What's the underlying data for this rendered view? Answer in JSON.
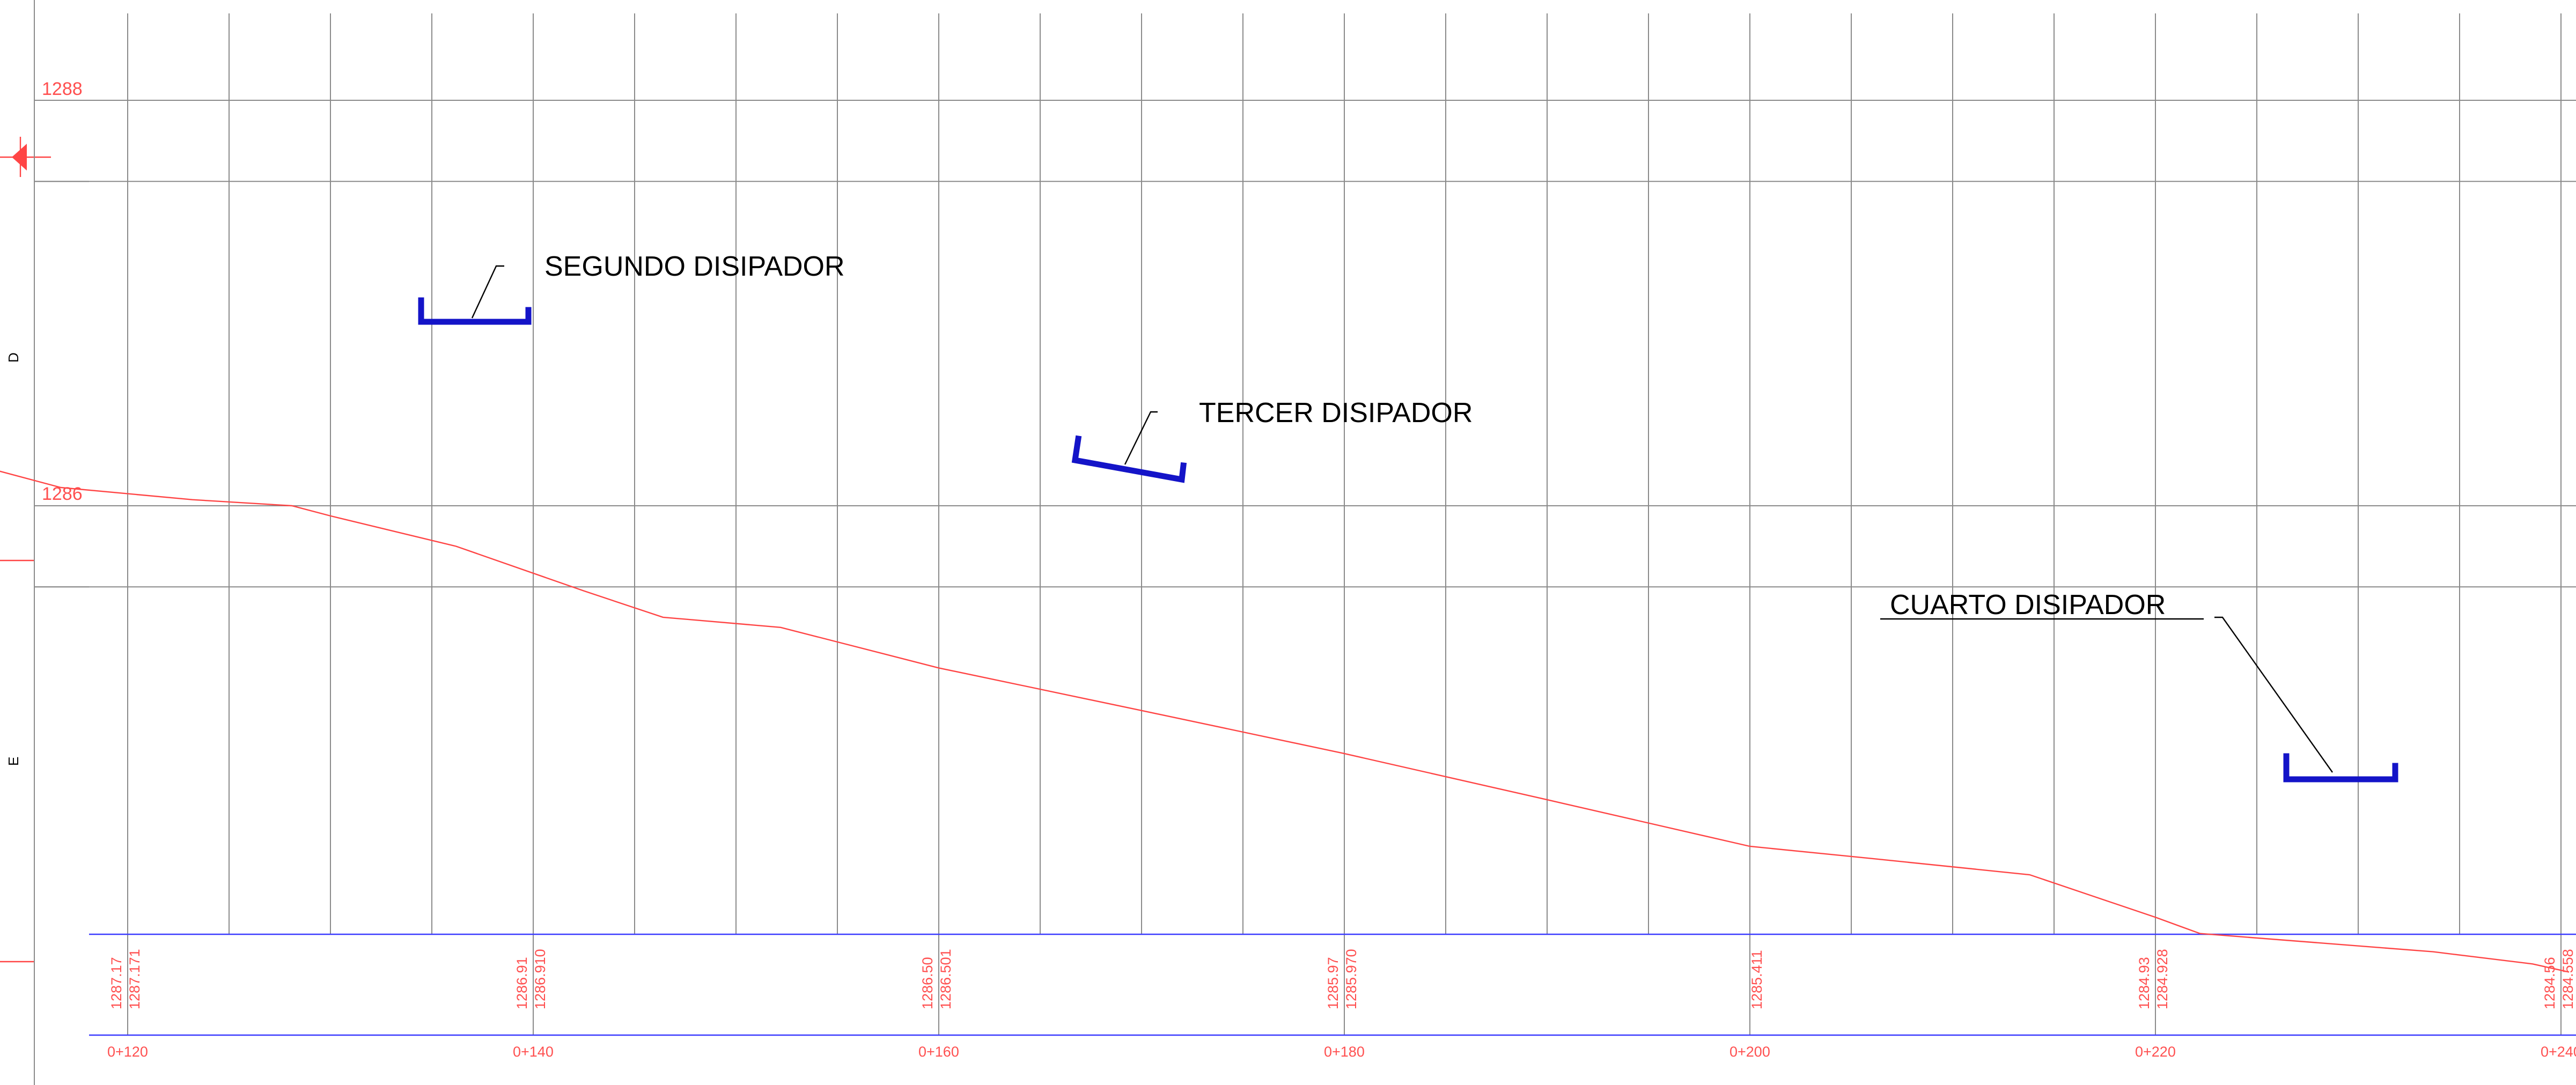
{
  "drawing": {
    "colors": {
      "grid": "#8a8a8a",
      "ground": "#ff4545",
      "dissipator": "#1414c8",
      "band": "#3c3cff",
      "annotation": "#ff5050",
      "label": "#000000"
    },
    "elevation_labels": [
      "1288",
      "1286"
    ],
    "side_letters": [
      "D",
      "E"
    ],
    "dissipators": [
      {
        "label": "SEGUNDO DISIPADOR"
      },
      {
        "label": "TERCER DISIPADOR"
      },
      {
        "label": "CUARTO DISIPADOR"
      }
    ],
    "stations": [
      {
        "station": "0+120",
        "elev_a": "1287.17",
        "elev_b": "1287.171"
      },
      {
        "station": "0+140",
        "elev_a": "1286.91",
        "elev_b": "1286.910"
      },
      {
        "station": "0+160",
        "elev_a": "1286.50",
        "elev_b": "1286.501"
      },
      {
        "station": "0+180",
        "elev_a": "1285.97",
        "elev_b": "1285.970"
      },
      {
        "station": "0+200",
        "elev_a": "",
        "elev_b": "1285.411"
      },
      {
        "station": "0+220",
        "elev_a": "1284.93",
        "elev_b": "1284.928"
      },
      {
        "station": "0+240",
        "elev_a": "1284.56",
        "elev_b": "1284.558"
      }
    ],
    "ground_profile": [
      {
        "station": 112.2,
        "elev": 1286.21
      },
      {
        "station": 116.7,
        "elev": 1286.09
      },
      {
        "station": 123.2,
        "elev": 1286.03
      },
      {
        "station": 128.1,
        "elev": 1286.0
      },
      {
        "station": 130.0,
        "elev": 1285.95
      },
      {
        "station": 136.2,
        "elev": 1285.8
      },
      {
        "station": 142.5,
        "elev": 1285.58
      },
      {
        "station": 146.4,
        "elev": 1285.45
      },
      {
        "station": 152.2,
        "elev": 1285.4
      },
      {
        "station": 160.0,
        "elev": 1285.2
      },
      {
        "station": 170.0,
        "elev": 1284.99
      },
      {
        "station": 179.9,
        "elev": 1284.78
      },
      {
        "station": 190.0,
        "elev": 1284.55
      },
      {
        "station": 200.0,
        "elev": 1284.32
      },
      {
        "station": 206.0,
        "elev": 1284.26
      },
      {
        "station": 213.8,
        "elev": 1284.18
      },
      {
        "station": 220.0,
        "elev": 1283.97
      },
      {
        "station": 222.2,
        "elev": 1283.89
      },
      {
        "station": 233.7,
        "elev": 1283.8
      },
      {
        "station": 238.6,
        "elev": 1283.74
      },
      {
        "station": 240.4,
        "elev": 1283.7
      }
    ]
  }
}
